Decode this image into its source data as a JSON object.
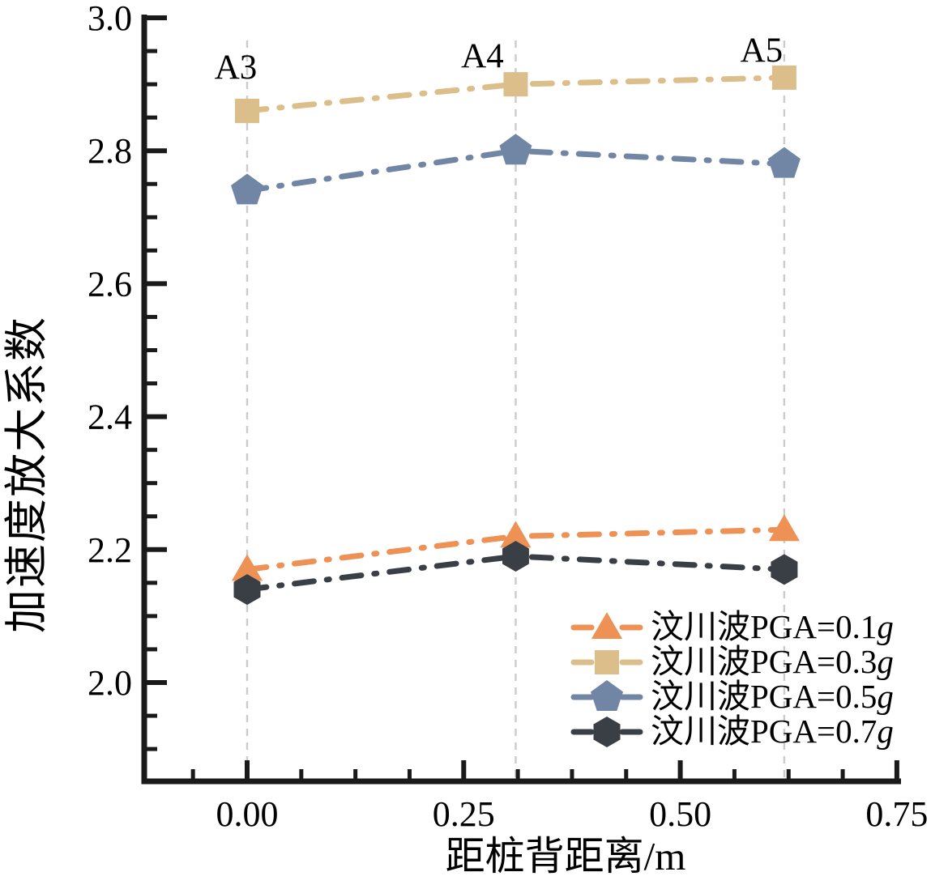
{
  "chart_data": {
    "type": "line",
    "title": "",
    "xlabel": "距桩背距离/m",
    "ylabel": "加速度放大系数",
    "x": [
      0,
      0.31,
      0.62
    ],
    "point_annotations": [
      "A3",
      "A4",
      "A5"
    ],
    "series": [
      {
        "name": "汶川波PGA=0.1g",
        "marker": "triangle",
        "color": "#ED9155",
        "values": [
          2.17,
          2.22,
          2.23
        ]
      },
      {
        "name": "汶川波PGA=0.3g",
        "marker": "square",
        "color": "#DCBE8B",
        "values": [
          2.86,
          2.9,
          2.91
        ]
      },
      {
        "name": "汶川波PGA=0.5g",
        "marker": "pentagon",
        "color": "#7186A4",
        "values": [
          2.74,
          2.8,
          2.78
        ]
      },
      {
        "name": "汶川波PGA=0.7g",
        "marker": "hexagon",
        "color": "#3A3E45",
        "values": [
          2.14,
          2.19,
          2.17
        ]
      }
    ],
    "xticks": {
      "values": [
        0,
        0.25,
        0.5,
        0.75
      ],
      "labels": [
        "0.00",
        "0.25",
        "0.50",
        "0.75"
      ]
    },
    "yticks": {
      "values": [
        3.0,
        2.8,
        2.6,
        2.4,
        2.2,
        2.0
      ],
      "labels": [
        "3.0",
        "2.8",
        "2.6",
        "2.4",
        "2.2",
        "2.0"
      ]
    },
    "minor_x_step": 0.0625,
    "minor_y_step": 0.05,
    "xlim": [
      -0.119,
      0.755
    ],
    "ylim": [
      1.85,
      3.0
    ],
    "line_style": "dash-dot",
    "grid": "vertical dashed lines at data x positions",
    "legend_position": "lower right",
    "colors": {
      "axis": "#1a1a1a",
      "grid": "#cbcbcb",
      "text": "#000000",
      "background": "#ffffff"
    }
  }
}
